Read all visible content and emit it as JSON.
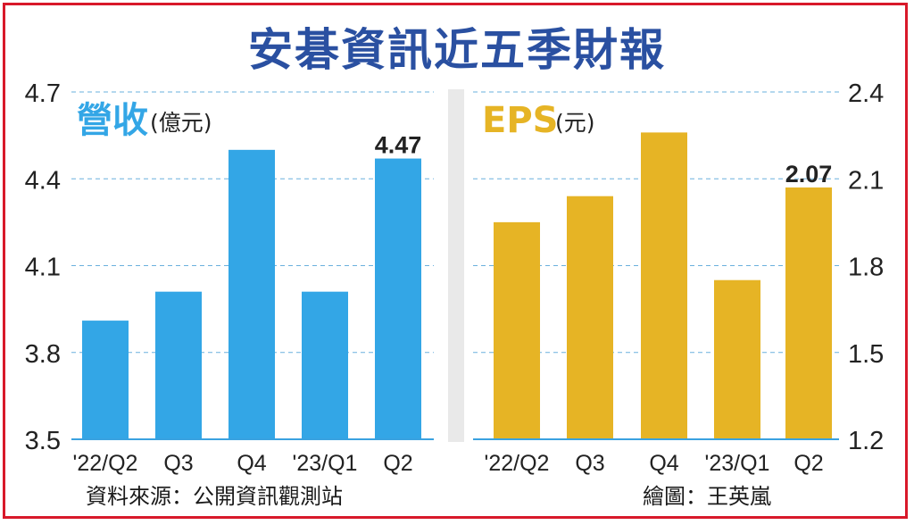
{
  "title": "安碁資訊近五季財報",
  "colors": {
    "frame": "#d8192a",
    "title": "#2a50a1",
    "revenue": "#33a6e6",
    "eps": "#e6b425",
    "grid": "#6ab0dd",
    "axis_line": "#3aa2e0"
  },
  "footer": {
    "source": "資料來源：公開資訊觀測站",
    "credit": "繪圖：王英嵐"
  },
  "chart_data": [
    {
      "type": "bar",
      "title": "營收",
      "unit": "(億元)",
      "categories": [
        "'22/Q2",
        "Q3",
        "Q4",
        "'23/Q1",
        "Q2"
      ],
      "values": [
        3.91,
        4.01,
        4.5,
        4.01,
        4.47
      ],
      "data_labels": [
        "",
        "",
        "",
        "",
        "4.47"
      ],
      "ylim": [
        3.5,
        4.7
      ],
      "yticks": [
        "3.5",
        "3.8",
        "4.1",
        "4.4",
        "4.7"
      ],
      "axis_side": "left",
      "grid": true
    },
    {
      "type": "bar",
      "title": "EPS",
      "unit": "(元)",
      "categories": [
        "'22/Q2",
        "Q3",
        "Q4",
        "'23/Q1",
        "Q2"
      ],
      "values": [
        1.95,
        2.04,
        2.26,
        1.75,
        2.07
      ],
      "data_labels": [
        "",
        "",
        "",
        "",
        "2.07"
      ],
      "ylim": [
        1.2,
        2.4
      ],
      "yticks": [
        "1.2",
        "1.5",
        "1.8",
        "2.1",
        "2.4"
      ],
      "axis_side": "right",
      "grid": true
    }
  ]
}
